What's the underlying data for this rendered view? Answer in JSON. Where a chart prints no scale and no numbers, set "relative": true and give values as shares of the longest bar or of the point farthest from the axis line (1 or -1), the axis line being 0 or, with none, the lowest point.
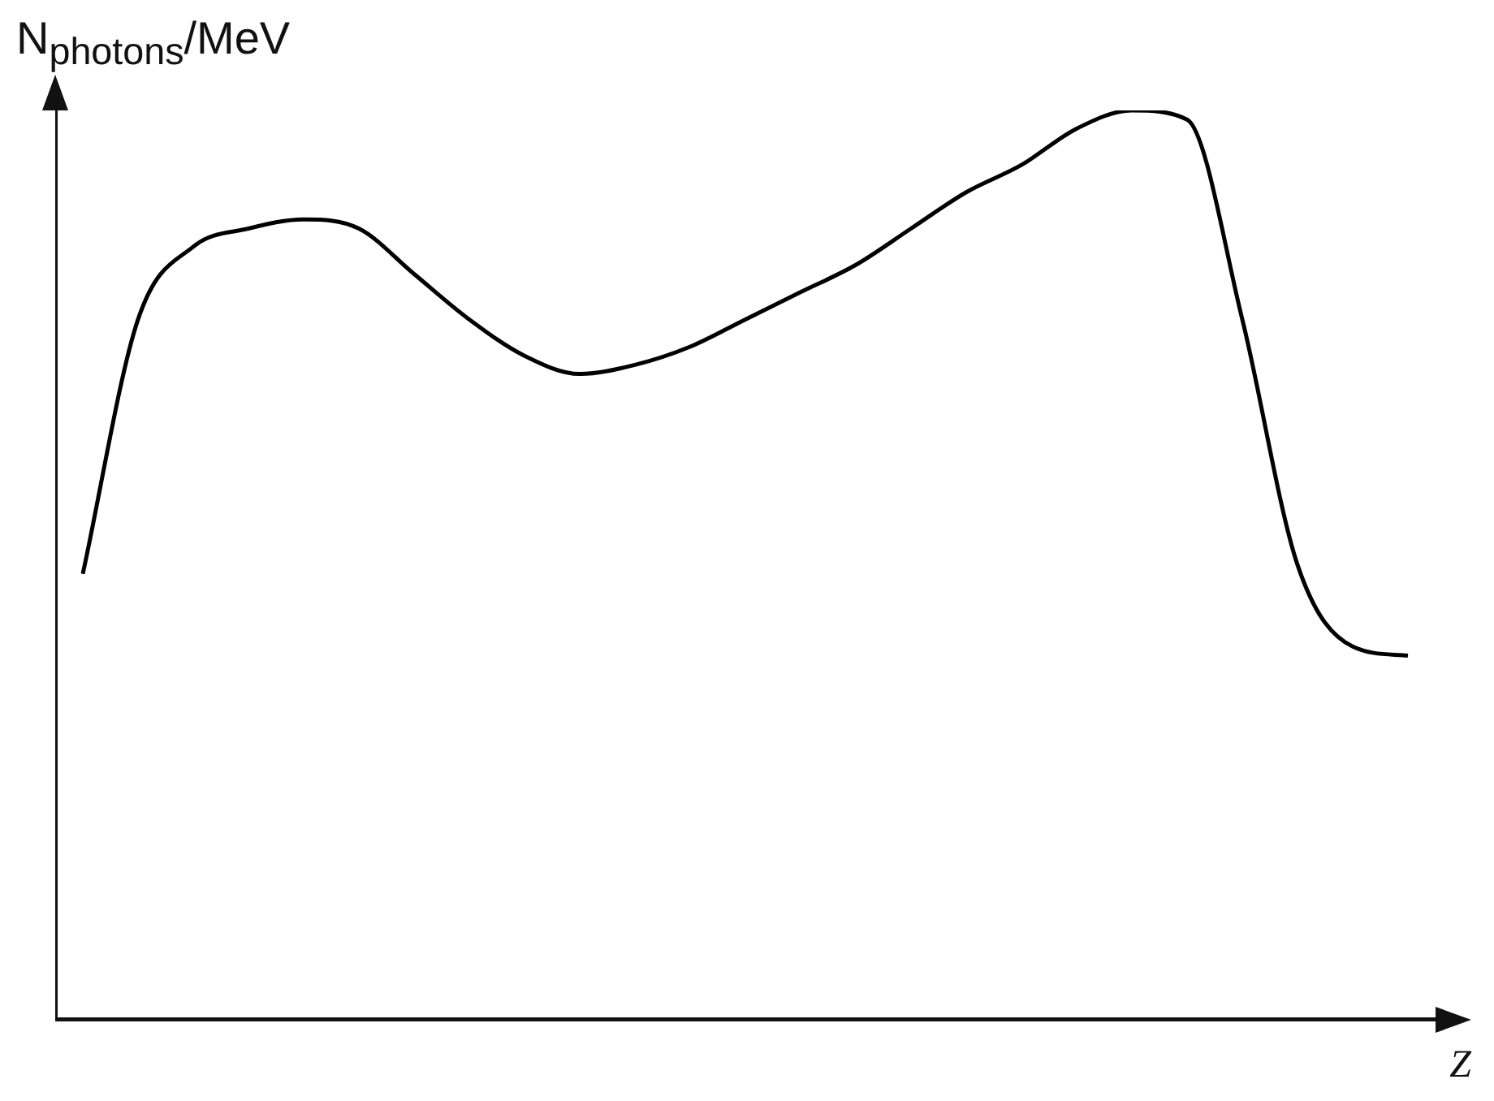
{
  "chart_data": {
    "type": "line",
    "ylabel": "N$_{photons}$/MeV",
    "xlabel": "Z",
    "relative": true,
    "grid": false,
    "legend": false,
    "marker": "none",
    "line_style": "solid",
    "categories": [
      null,
      null,
      null,
      null,
      null,
      null,
      null,
      null,
      null,
      null,
      null,
      null,
      null,
      null,
      null,
      null,
      null,
      null,
      null,
      null,
      null,
      null,
      null,
      null,
      null
    ],
    "series": [
      {
        "color": "#000000",
        "values": [
          0.49,
          0.77,
          0.85,
          0.87,
          0.88,
          0.87,
          0.82,
          0.77,
          0.73,
          0.71,
          0.72,
          0.74,
          0.77,
          0.8,
          0.83,
          0.87,
          0.91,
          0.94,
          0.98,
          1.0,
          0.99,
          0.77,
          0.5,
          0.41,
          0.4
        ]
      }
    ]
  }
}
